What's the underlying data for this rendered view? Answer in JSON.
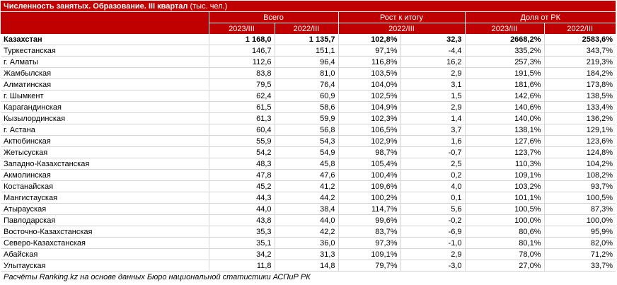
{
  "title": {
    "bold": "Численность занятых. Образование. III квартал",
    "unit": "(тыс. чел.)"
  },
  "groups": [
    "Всего",
    "Рост к итогу",
    "Доля от РК"
  ],
  "subheaders": [
    "2023/III",
    "2022/III",
    "2022/III",
    "2023/III",
    "2022/III"
  ],
  "rows": [
    {
      "name": "Казахстан",
      "c": [
        "1 168,0",
        "1 135,7",
        "102,8%",
        "32,3",
        "2668,2%",
        "2583,6%"
      ]
    },
    {
      "name": "Туркестанская",
      "c": [
        "146,7",
        "151,1",
        "97,1%",
        "-4,4",
        "335,2%",
        "343,7%"
      ]
    },
    {
      "name": "г. Алматы",
      "c": [
        "112,6",
        "96,4",
        "116,8%",
        "16,2",
        "257,3%",
        "219,3%"
      ]
    },
    {
      "name": "Жамбылская",
      "c": [
        "83,8",
        "81,0",
        "103,5%",
        "2,9",
        "191,5%",
        "184,2%"
      ]
    },
    {
      "name": "Алматинская",
      "c": [
        "79,5",
        "76,4",
        "104,0%",
        "3,1",
        "181,6%",
        "173,8%"
      ]
    },
    {
      "name": "г. Шымкент",
      "c": [
        "62,4",
        "60,9",
        "102,5%",
        "1,5",
        "142,6%",
        "138,5%"
      ]
    },
    {
      "name": "Карагандинская",
      "c": [
        "61,5",
        "58,6",
        "104,9%",
        "2,9",
        "140,6%",
        "133,4%"
      ]
    },
    {
      "name": "Кызылординская",
      "c": [
        "61,3",
        "59,9",
        "102,3%",
        "1,4",
        "140,0%",
        "136,2%"
      ]
    },
    {
      "name": "г. Астана",
      "c": [
        "60,4",
        "56,8",
        "106,5%",
        "3,7",
        "138,1%",
        "129,1%"
      ]
    },
    {
      "name": "Актюбинская",
      "c": [
        "55,9",
        "54,3",
        "102,9%",
        "1,6",
        "127,6%",
        "123,6%"
      ]
    },
    {
      "name": "Жетысуская",
      "c": [
        "54,2",
        "54,9",
        "98,7%",
        "-0,7",
        "123,7%",
        "124,8%"
      ]
    },
    {
      "name": "Западно-Казахстанская",
      "c": [
        "48,3",
        "45,8",
        "105,4%",
        "2,5",
        "110,3%",
        "104,2%"
      ]
    },
    {
      "name": "Акмолинская",
      "c": [
        "47,8",
        "47,6",
        "100,4%",
        "0,2",
        "109,1%",
        "108,2%"
      ]
    },
    {
      "name": "Костанайская",
      "c": [
        "45,2",
        "41,2",
        "109,6%",
        "4,0",
        "103,2%",
        "93,7%"
      ]
    },
    {
      "name": "Мангистауская",
      "c": [
        "44,3",
        "44,2",
        "100,2%",
        "0,1",
        "101,1%",
        "100,5%"
      ]
    },
    {
      "name": "Атырауская",
      "c": [
        "44,0",
        "38,4",
        "114,7%",
        "5,6",
        "100,5%",
        "87,3%"
      ]
    },
    {
      "name": "Павлодарская",
      "c": [
        "43,8",
        "44,0",
        "99,6%",
        "-0,2",
        "100,0%",
        "100,0%"
      ]
    },
    {
      "name": "Восточно-Казахстанская",
      "c": [
        "35,3",
        "42,2",
        "83,7%",
        "-6,9",
        "80,6%",
        "95,9%"
      ]
    },
    {
      "name": "Северо-Казахстанская",
      "c": [
        "35,1",
        "36,0",
        "97,3%",
        "-1,0",
        "80,1%",
        "82,0%"
      ]
    },
    {
      "name": "Абайская",
      "c": [
        "34,2",
        "31,3",
        "109,1%",
        "2,9",
        "78,0%",
        "71,2%"
      ]
    },
    {
      "name": "Улытауская",
      "c": [
        "11,8",
        "14,8",
        "79,7%",
        "-3,0",
        "27,0%",
        "33,7%"
      ]
    }
  ],
  "footnote": "Расчёты Ranking.kz на основе данных Бюро национальной статистики АСПиР РК",
  "colors": {
    "header_bg": "#c00000",
    "header_text": "#ffffff",
    "grid": "#d4d4d4"
  }
}
